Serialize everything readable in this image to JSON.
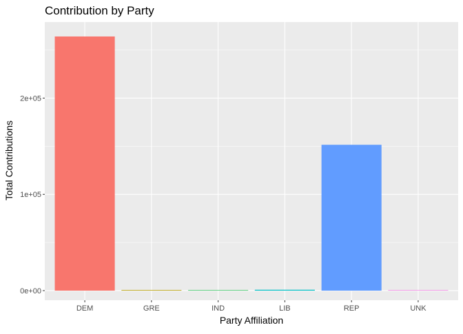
{
  "chart_data": {
    "type": "bar",
    "title": "Contribution by Party",
    "xlabel": "Party Affiliation",
    "ylabel": "Total Contributions",
    "categories": [
      "DEM",
      "GRE",
      "IND",
      "LIB",
      "REP",
      "UNK"
    ],
    "values": [
      264000,
      600,
      150,
      900,
      151500,
      80
    ],
    "bar_colors": [
      "#F8766D",
      "#B79F00",
      "#00BA38",
      "#00BFC4",
      "#619CFF",
      "#F564E3"
    ],
    "ylim": [
      -10000,
      279000
    ],
    "y_ticks": [
      0,
      100000,
      200000
    ],
    "y_tick_labels": [
      "0e+00",
      "1e+05",
      "2e+05"
    ],
    "y_minor_ticks": [
      50000,
      150000,
      250000
    ],
    "grid": true,
    "legend": "none",
    "panel_background": "#EBEBEB",
    "grid_color": "#FFFFFF"
  }
}
